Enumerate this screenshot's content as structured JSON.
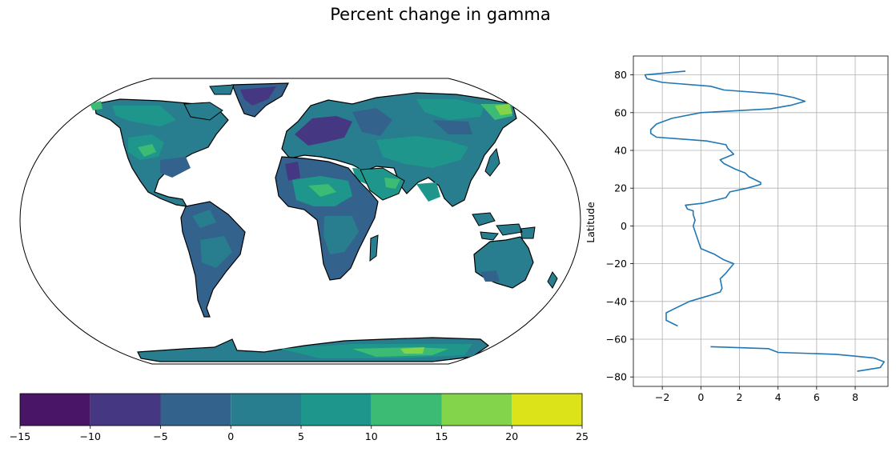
{
  "title": "Percent change in gamma",
  "colors": {
    "viridis": [
      "#481567",
      "#453781",
      "#33638d",
      "#287d8e",
      "#1f968b",
      "#3cbb75",
      "#84d44b",
      "#dce319"
    ],
    "line": "#1f77b4",
    "grid": "#b0b0b0",
    "ocean": "#ffffff",
    "coastline": "#000000"
  },
  "chart_data": [
    {
      "type": "heatmap",
      "name": "world-map",
      "projection": "robinson",
      "colorbar": {
        "ticks": [
          "−15",
          "−10",
          "−5",
          "0",
          "5",
          "10",
          "15",
          "20",
          "25"
        ],
        "boundaries": [
          -15,
          -10,
          -5,
          0,
          5,
          10,
          15,
          20,
          25
        ],
        "orientation": "horizontal",
        "placement": "below map"
      }
    },
    {
      "type": "line",
      "name": "zonal-mean-profile",
      "xlabel": "",
      "ylabel": "Latitude",
      "xlim": [
        -3.5,
        9.7
      ],
      "ylim": [
        -85,
        90
      ],
      "xticks": [
        -2,
        0,
        2,
        4,
        6,
        8
      ],
      "xtick_labels": [
        "−2",
        "0",
        "2",
        "4",
        "6",
        "8"
      ],
      "yticks": [
        -80,
        -60,
        -40,
        -20,
        0,
        20,
        40,
        60,
        80
      ],
      "ytick_labels": [
        "−80",
        "−60",
        "−40",
        "−20",
        "0",
        "20",
        "40",
        "60",
        "80"
      ],
      "grid": true,
      "segments": [
        {
          "x": [
            -0.8,
            -2.9,
            -2.8,
            -2.0,
            0.5,
            1.2,
            3.8,
            4.8,
            5.4,
            4.7,
            3.6,
            0.0,
            -1.5,
            -2.3,
            -2.6,
            -2.6,
            -2.3,
            -1.0,
            0.3,
            1.3,
            1.4,
            1.7,
            1.0,
            1.2,
            1.8,
            2.3,
            2.5,
            3.1,
            3.1,
            2.4,
            1.5,
            1.3,
            0.1,
            -0.8,
            -0.7,
            -0.4,
            -0.4,
            -0.3,
            -0.4,
            -0.3,
            -0.2,
            -0.1,
            0.0,
            0.7,
            1.2,
            1.7,
            1.3,
            1.0,
            1.1,
            1.0,
            0.4,
            -0.6,
            -1.4,
            -1.8,
            -1.8,
            -1.2
          ],
          "y": [
            82,
            80,
            78,
            76,
            74,
            72,
            70,
            68,
            66,
            64,
            62,
            60,
            57,
            54,
            51,
            49,
            47,
            46,
            45,
            43,
            41,
            38,
            35,
            33,
            30,
            28,
            26,
            23,
            22,
            20,
            18,
            15,
            12,
            11,
            9,
            8,
            6,
            3,
            0,
            -3,
            -6,
            -9,
            -12,
            -15,
            -18,
            -20,
            -25,
            -28,
            -33,
            -35,
            -37,
            -40,
            -44,
            -46,
            -50,
            -53
          ]
        },
        {
          "x": [
            0.5,
            3.5,
            4.0,
            7.0,
            8.0,
            9.0,
            9.5,
            9.3,
            8.1
          ],
          "y": [
            -64,
            -65,
            -67,
            -68,
            -69,
            -70,
            -72,
            -75,
            -77
          ]
        }
      ]
    }
  ]
}
